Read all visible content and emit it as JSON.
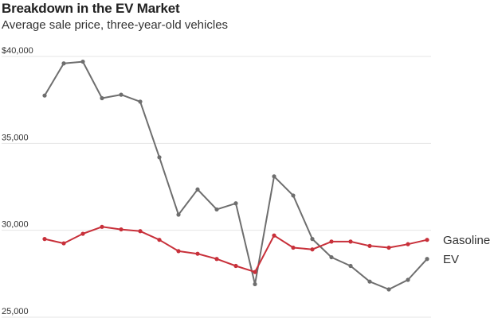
{
  "chart_data": {
    "type": "line",
    "title": "Breakdown in the EV Market",
    "subtitle": "Average sale price, three-year-old vehicles",
    "xlabel": "",
    "ylabel": "",
    "ylim": [
      25000,
      40000
    ],
    "yticks": [
      {
        "value": 40000,
        "label": "$40,000"
      },
      {
        "value": 35000,
        "label": "35,000"
      },
      {
        "value": 30000,
        "label": "30,000"
      },
      {
        "value": 25000,
        "label": "25,000"
      }
    ],
    "grid": true,
    "legend": "right, at line ends",
    "series": [
      {
        "name": "EV",
        "color": "#6e6e6e",
        "values": [
          37750,
          39600,
          39700,
          37600,
          37800,
          37400,
          34200,
          30900,
          32350,
          31200,
          31550,
          26900,
          33100,
          32000,
          29500,
          28450,
          27950,
          27050,
          26600,
          27150,
          28350
        ]
      },
      {
        "name": "Gasoline",
        "color": "#c8303a",
        "values": [
          29500,
          29250,
          29800,
          30200,
          30050,
          29950,
          29450,
          28800,
          28650,
          28350,
          27950,
          27600,
          29700,
          29000,
          28900,
          29350,
          29350,
          29100,
          29000,
          29200,
          29450
        ]
      }
    ]
  }
}
